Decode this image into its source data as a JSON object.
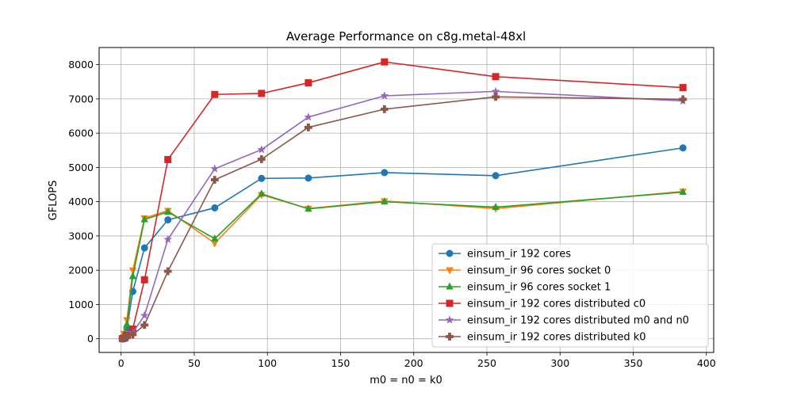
{
  "chart_data": {
    "type": "line",
    "title": "Average Performance on c8g.metal-48xl",
    "xlabel": "m0 = n0 = k0",
    "ylabel": "GFLOPS",
    "xlim": [
      -15,
      405
    ],
    "ylim": [
      -400,
      8500
    ],
    "xticks": [
      0,
      50,
      100,
      150,
      200,
      250,
      300,
      350,
      400
    ],
    "yticks": [
      0,
      1000,
      2000,
      3000,
      4000,
      5000,
      6000,
      7000,
      8000
    ],
    "grid": true,
    "legend_position": "lower-right",
    "series": [
      {
        "name": "einsum_ir 192 cores",
        "color": "#1f77b4",
        "marker": "circle",
        "x": [
          1,
          2,
          4,
          8,
          16,
          32,
          64,
          96,
          128,
          180,
          256,
          384
        ],
        "y": [
          5,
          40,
          300,
          1380,
          2650,
          3470,
          3820,
          4680,
          4690,
          4850,
          4760,
          5570
        ]
      },
      {
        "name": "einsum_ir 96 cores socket 0",
        "color": "#ff7f0e",
        "marker": "triangle-down",
        "x": [
          1,
          2,
          4,
          8,
          16,
          32,
          64,
          96,
          128,
          180,
          256,
          384
        ],
        "y": [
          10,
          150,
          550,
          2000,
          3520,
          3740,
          2790,
          4200,
          3800,
          4020,
          3800,
          4300
        ]
      },
      {
        "name": "einsum_ir 96 cores socket 1",
        "color": "#2ca02c",
        "marker": "triangle-up",
        "x": [
          1,
          2,
          4,
          8,
          16,
          32,
          64,
          96,
          128,
          180,
          256,
          384
        ],
        "y": [
          8,
          120,
          420,
          1820,
          3480,
          3700,
          2920,
          4230,
          3790,
          4000,
          3840,
          4280
        ]
      },
      {
        "name": "einsum_ir 192 cores distributed c0",
        "color": "#d62728",
        "marker": "square",
        "x": [
          1,
          2,
          4,
          8,
          16,
          32,
          64,
          96,
          128,
          180,
          256,
          384
        ],
        "y": [
          5,
          20,
          100,
          280,
          1720,
          5230,
          7130,
          7160,
          7470,
          8080,
          7650,
          7330
        ]
      },
      {
        "name": "einsum_ir 192 cores distributed m0 and n0",
        "color": "#9467bd",
        "marker": "star",
        "x": [
          1,
          2,
          4,
          8,
          16,
          32,
          64,
          96,
          128,
          180,
          256,
          384
        ],
        "y": [
          3,
          15,
          60,
          180,
          680,
          2900,
          4960,
          5520,
          6470,
          7090,
          7220,
          6940
        ]
      },
      {
        "name": "einsum_ir 192 cores distributed k0",
        "color": "#8c564b",
        "marker": "plus",
        "x": [
          1,
          2,
          4,
          8,
          16,
          32,
          64,
          96,
          128,
          180,
          256,
          384
        ],
        "y": [
          2,
          10,
          40,
          120,
          400,
          1970,
          4640,
          5240,
          6170,
          6700,
          7060,
          6990
        ]
      }
    ]
  }
}
